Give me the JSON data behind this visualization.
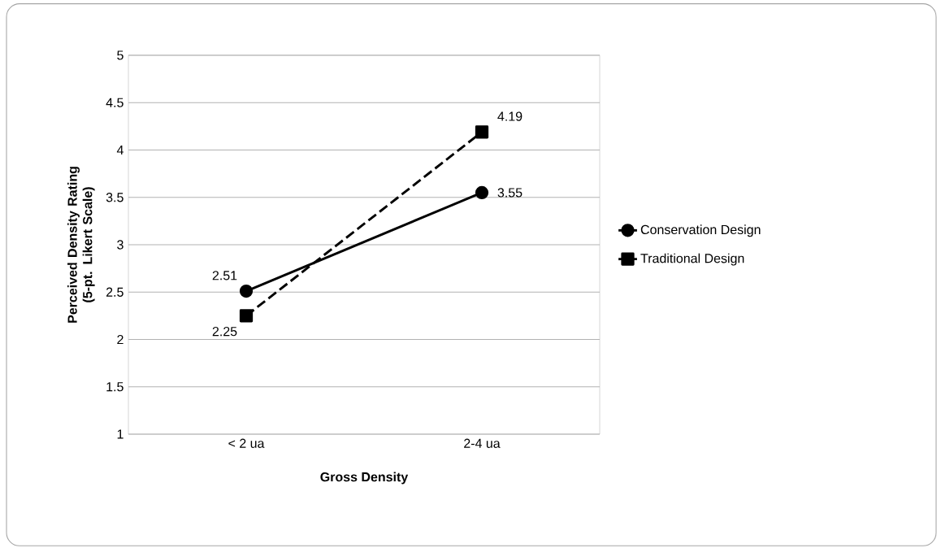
{
  "chart_data": {
    "type": "line",
    "xlabel": "Gross Density",
    "ylabel": "Perceived Density Rating (5-pt. Likert Scale)",
    "categories": [
      "< 2 ua",
      "2-4 ua"
    ],
    "series": [
      {
        "name": "Conservation Design",
        "color": "#000000",
        "values": [
          2.51,
          3.55
        ],
        "marker": "circle",
        "line_style": "solid"
      },
      {
        "name": "Traditional Design",
        "color": "#000000",
        "values": [
          2.25,
          4.19
        ],
        "marker": "square",
        "line_style": "dashed"
      }
    ],
    "ylim": [
      1,
      5
    ],
    "yticks": [
      1,
      1.5,
      2,
      2.5,
      3,
      3.5,
      4,
      4.5,
      5
    ],
    "grid": "y",
    "legend": "right",
    "data_labels": true
  }
}
